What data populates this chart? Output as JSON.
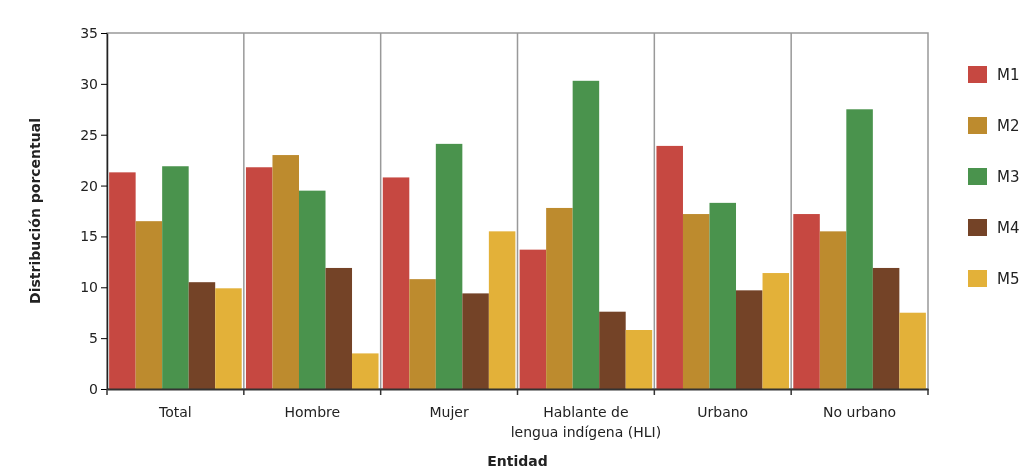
{
  "chart_data": {
    "type": "bar",
    "xlabel": "Entidad",
    "ylabel": "Distribución porcentual",
    "categories": [
      "Total",
      "Hombre",
      "Mujer",
      "Hablante de\nlengua indígena (HLI)",
      "Urbano",
      "No urbano"
    ],
    "series": [
      {
        "name": "M1",
        "color": "#c64841",
        "values": [
          21.3,
          21.8,
          20.8,
          13.7,
          23.9,
          17.2
        ]
      },
      {
        "name": "M2",
        "color": "#bd8b2e",
        "values": [
          16.5,
          23.0,
          10.8,
          17.8,
          17.2,
          15.5
        ]
      },
      {
        "name": "M3",
        "color": "#4a934d",
        "values": [
          21.9,
          19.5,
          24.1,
          30.3,
          18.3,
          27.5
        ]
      },
      {
        "name": "M4",
        "color": "#744327",
        "values": [
          10.5,
          11.9,
          9.4,
          7.6,
          9.7,
          11.9
        ]
      },
      {
        "name": "M5",
        "color": "#e3b139",
        "values": [
          9.9,
          3.5,
          15.5,
          5.8,
          11.4,
          7.5
        ]
      }
    ],
    "ylim": [
      0,
      35
    ],
    "yticks": [
      0,
      5,
      10,
      15,
      20,
      25,
      30,
      35
    ],
    "legend": "right"
  }
}
